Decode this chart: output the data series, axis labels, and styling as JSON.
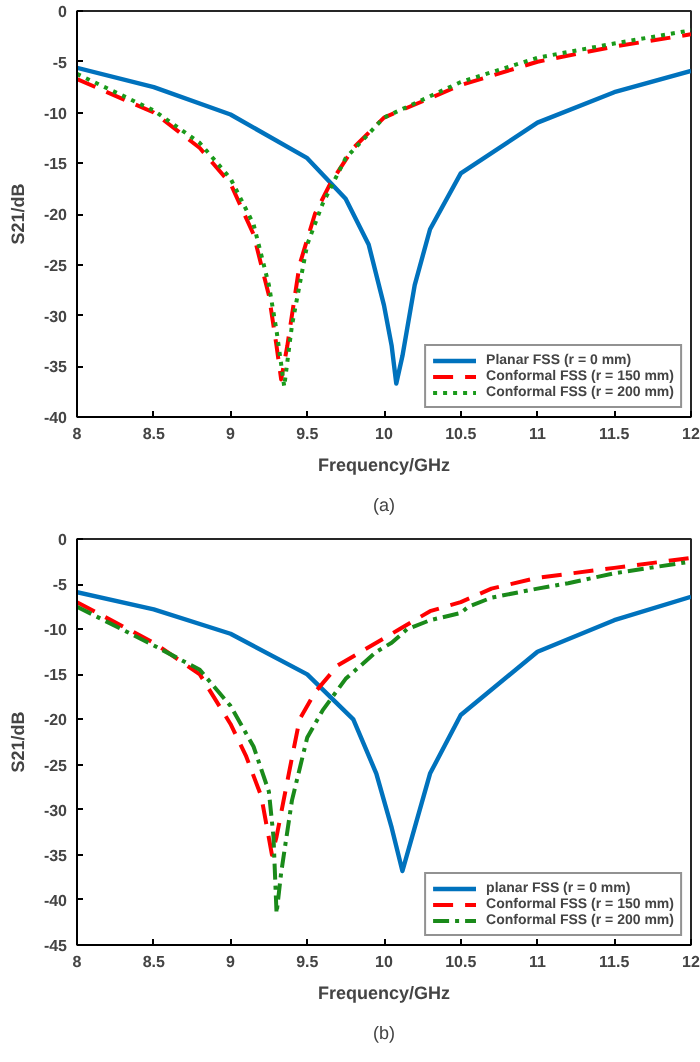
{
  "chart_data": [
    {
      "type": "line",
      "xlabel": "Frequency/GHz",
      "ylabel": "S21/dB",
      "annotations": [
        "(a)"
      ],
      "xlim": [
        8,
        12
      ],
      "ylim": [
        -40,
        0
      ],
      "xticks": [
        8,
        8.5,
        9,
        9.5,
        10,
        10.5,
        11,
        11.5,
        12
      ],
      "yticks": [
        0,
        -5,
        -10,
        -15,
        -20,
        -25,
        -30,
        -35,
        -40
      ],
      "legend": "bottom right",
      "series": [
        {
          "name": "Planar FSS (r = 0 mm)",
          "color": "#0072bd",
          "line_style": "solid",
          "x": [
            8,
            8.5,
            9,
            9.5,
            9.75,
            9.9,
            10.0,
            10.05,
            10.08,
            10.12,
            10.2,
            10.3,
            10.5,
            11,
            11.5,
            12
          ],
          "values": [
            -5.6,
            -7.5,
            -10.2,
            -14.5,
            -18.5,
            -23,
            -29,
            -33,
            -36.7,
            -34,
            -27,
            -21.5,
            -16,
            -11,
            -8,
            -5.9
          ]
        },
        {
          "name": "Conformal FSS (r = 150 mm)",
          "color": "#ff0000",
          "line_style": "dashed",
          "x": [
            8,
            8.5,
            8.8,
            9,
            9.15,
            9.25,
            9.3,
            9.33,
            9.37,
            9.45,
            9.55,
            9.65,
            9.8,
            10,
            10.5,
            11,
            11.5,
            12
          ],
          "values": [
            -6.7,
            -10,
            -13.5,
            -17,
            -22,
            -28,
            -33,
            -36.3,
            -33,
            -25,
            -20,
            -17,
            -13.5,
            -10.5,
            -7.3,
            -5,
            -3.5,
            -2.3
          ]
        },
        {
          "name": "Conformal FSS (r = 200 mm)",
          "color": "#1a9a1a",
          "line_style": "dotted",
          "x": [
            8,
            8.5,
            8.8,
            9,
            9.15,
            9.25,
            9.3,
            9.35,
            9.4,
            9.5,
            9.6,
            9.75,
            10,
            10.5,
            11,
            11.5,
            12
          ],
          "values": [
            -6.2,
            -9.8,
            -13,
            -16.5,
            -21,
            -27,
            -31.5,
            -37,
            -31,
            -23,
            -19,
            -14.5,
            -10.5,
            -7,
            -4.6,
            -3.2,
            -1.9
          ]
        }
      ]
    },
    {
      "type": "line",
      "xlabel": "Frequency/GHz",
      "ylabel": "S21/dB",
      "annotations": [
        "(b)"
      ],
      "xlim": [
        8,
        12
      ],
      "ylim": [
        -45,
        0
      ],
      "xticks": [
        8,
        8.5,
        9,
        9.5,
        10,
        10.5,
        11,
        11.5,
        12
      ],
      "yticks": [
        0,
        -5,
        -10,
        -15,
        -20,
        -25,
        -30,
        -35,
        -40,
        -45
      ],
      "legend": "bottom right",
      "series": [
        {
          "name": "planar FSS (r = 0 mm)",
          "color": "#0072bd",
          "line_style": "solid",
          "x": [
            8,
            8.5,
            9,
            9.5,
            9.8,
            9.95,
            10.05,
            10.12,
            10.2,
            10.3,
            10.5,
            11,
            11.5,
            12
          ],
          "values": [
            -5.9,
            -7.8,
            -10.5,
            -15,
            -20,
            -26,
            -32,
            -36.8,
            -32,
            -26,
            -19.5,
            -12.5,
            -9,
            -6.4
          ]
        },
        {
          "name": "Conformal FSS (r = 150 mm)",
          "color": "#ff0000",
          "line_style": "dashed",
          "x": [
            8,
            8.5,
            8.8,
            9,
            9.1,
            9.2,
            9.27,
            9.3,
            9.38,
            9.45,
            9.55,
            9.7,
            10,
            10.1,
            10.3,
            10.5,
            10.7,
            11,
            11.5,
            12
          ],
          "values": [
            -7,
            -11.5,
            -15,
            -20.5,
            -24,
            -28.5,
            -35,
            -33,
            -26,
            -20,
            -17,
            -14,
            -11,
            -10,
            -8,
            -7,
            -5.5,
            -4.3,
            -3.2,
            -2.1
          ]
        },
        {
          "name": "Conformal FSS (r = 200 mm)",
          "color": "#1a8a1a",
          "line_style": "dashdot",
          "x": [
            8,
            8.5,
            8.8,
            9,
            9.15,
            9.25,
            9.28,
            9.3,
            9.33,
            9.4,
            9.5,
            9.6,
            9.75,
            9.95,
            10.05,
            10.15,
            10.3,
            10.5,
            10.55,
            10.7,
            11,
            11.2,
            11.5,
            12
          ],
          "values": [
            -7.5,
            -11.8,
            -14.5,
            -18.5,
            -23,
            -28,
            -33,
            -41.5,
            -37,
            -29,
            -22,
            -19,
            -15.5,
            -12.5,
            -11.5,
            -10,
            -9,
            -8.2,
            -7.5,
            -6.5,
            -5.5,
            -4.9,
            -3.8,
            -2.5
          ]
        }
      ]
    }
  ]
}
